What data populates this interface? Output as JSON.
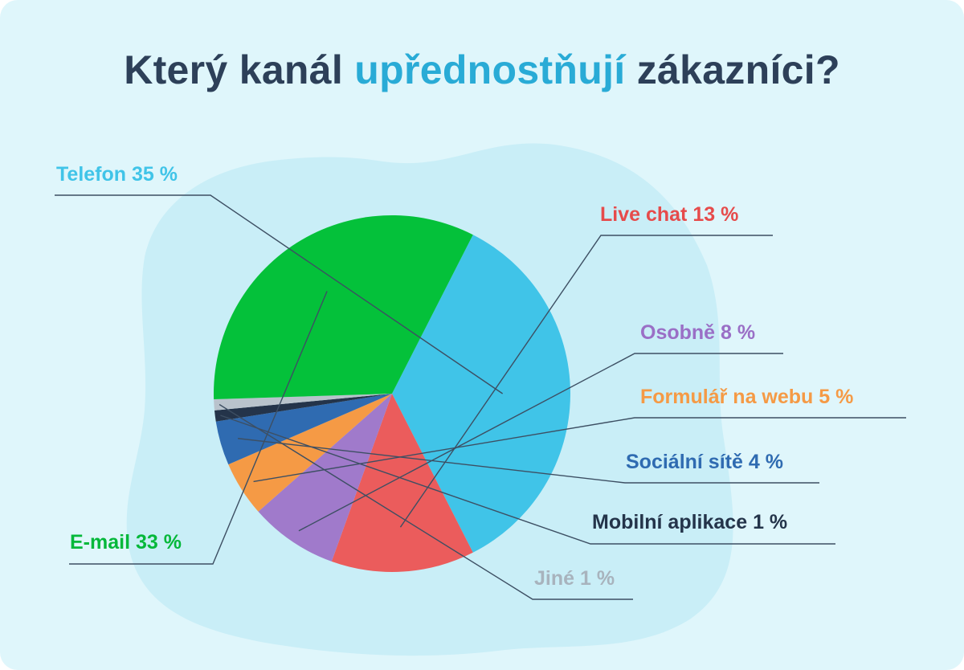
{
  "header": {
    "title_part1": "Který kanál",
    "title_highlight": "upřednostňují",
    "title_part2": "zákazníci?"
  },
  "colors": {
    "background": "#dff6fb",
    "blob": "#c9eef7",
    "title": "#2d4059",
    "title_highlight": "#29abd6",
    "leader": "#3d4f63"
  },
  "chart_data": {
    "type": "pie",
    "title": "Který kanál upřednostňují zákazníci?",
    "unit": "%",
    "slices": [
      {
        "key": "telefon",
        "label": "Telefon",
        "value": 35,
        "value_text": "35 %",
        "color": "#40c4e8"
      },
      {
        "key": "livechat",
        "label": "Live chat",
        "value": 13,
        "value_text": "13 %",
        "color": "#eb5c5c"
      },
      {
        "key": "osobne",
        "label": "Osobně",
        "value": 8,
        "value_text": "8 %",
        "color": "#a07acb"
      },
      {
        "key": "formular",
        "label": "Formulář na webu",
        "value": 5,
        "value_text": "5 %",
        "color": "#f59a45"
      },
      {
        "key": "socialni",
        "label": "Sociální sítě",
        "value": 4,
        "value_text": "4 %",
        "color": "#2f6bb1"
      },
      {
        "key": "mobilni",
        "label": "Mobilní aplikace",
        "value": 1,
        "value_text": "1 %",
        "color": "#24344a"
      },
      {
        "key": "jine",
        "label": "Jiné",
        "value": 1,
        "value_text": "1 %",
        "color": "#b9c3cc"
      },
      {
        "key": "email",
        "label": "E-mail",
        "value": 33,
        "value_text": "33 %",
        "color": "#04c13a"
      }
    ],
    "label_colors": {
      "telefon": "#40c4e8",
      "livechat": "#e64b4b",
      "osobne": "#9a6fc6",
      "formular": "#f59a45",
      "socialni": "#2f6bb1",
      "mobilni": "#24344a",
      "jine": "#a8b3bd",
      "email": "#04b83a"
    }
  }
}
